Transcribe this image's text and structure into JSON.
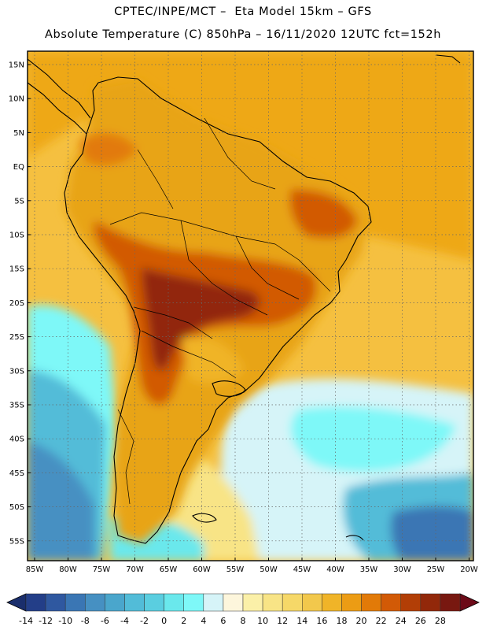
{
  "header": {
    "line1": "CPTEC/INPE/MCT –  Eta Model 15km – GFS",
    "line2": "Absolute Temperature (C) 850hPa – 16/11/2020 12UTC fct=152h"
  },
  "map": {
    "lat_labels": [
      "15N",
      "10N",
      "5N",
      "EQ",
      "5S",
      "10S",
      "15S",
      "20S",
      "25S",
      "30S",
      "35S",
      "40S",
      "45S",
      "50S",
      "55S"
    ],
    "lon_labels": [
      "85W",
      "80W",
      "75W",
      "70W",
      "65W",
      "60W",
      "55W",
      "50W",
      "45W",
      "40W",
      "35W",
      "30W",
      "25W",
      "20W"
    ],
    "ocean_color": "#f5c040",
    "land_color": "#e8a418"
  },
  "legend": {
    "labels": [
      "-14",
      "-12",
      "-10",
      "-8",
      "-6",
      "-4",
      "-2",
      "0",
      "2",
      "4",
      "6",
      "8",
      "10",
      "12",
      "14",
      "16",
      "18",
      "20",
      "22",
      "24",
      "26",
      "28"
    ],
    "colors": [
      "#233e88",
      "#2f58a0",
      "#3a76b4",
      "#4690c2",
      "#4aa6cc",
      "#52bcd8",
      "#5acee0",
      "#6ae8ec",
      "#7ef8f8",
      "#d6f4f8",
      "#fdf6dc",
      "#fbf0a8",
      "#f8e486",
      "#f6d868",
      "#f2c84c",
      "#f0b428",
      "#ec9c14",
      "#e27a08",
      "#d25a06",
      "#b23e06",
      "#92280a",
      "#781810"
    ],
    "under_color": "#1a2e6c",
    "over_color": "#6c0a18"
  }
}
